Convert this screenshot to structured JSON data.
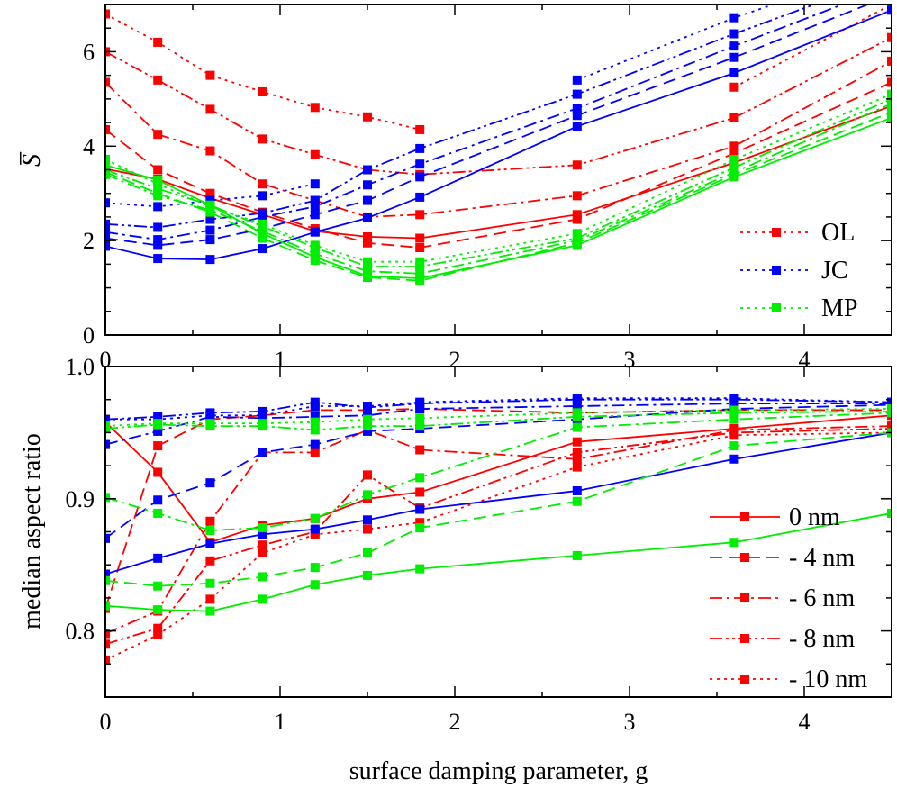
{
  "chart_data": [
    {
      "type": "line",
      "panel": "top",
      "ylabel": "S̅",
      "xlabel": "",
      "xlim": [
        0,
        4.5
      ],
      "ylim": [
        0,
        7
      ],
      "x_ticks": [
        "0",
        "1",
        "2",
        "3",
        "4"
      ],
      "y_ticks": [
        "0",
        "2",
        "4",
        "6"
      ],
      "x": [
        0,
        0.3,
        0.6,
        0.9,
        1.2,
        1.5,
        1.8,
        2.7,
        3.6,
        4.5
      ],
      "legend_position": "right",
      "legend": [
        "OL",
        "JC",
        "MP"
      ],
      "colors": {
        "OL": "#ff0000",
        "JC": "#0000ff",
        "MP": "#00ee00"
      },
      "styles": {
        "solid": "0 nm",
        "dashed": "- 4 nm",
        "dashdot": "- 6 nm",
        "dashdotdot": "- 8 nm",
        "dotted": "- 10 nm"
      },
      "series": [
        {
          "group": "OL",
          "depth": "0 nm",
          "style": "solid",
          "values": [
            3.52,
            3.3,
            2.9,
            2.55,
            2.2,
            2.08,
            2.05,
            2.55,
            3.65,
            4.85
          ]
        },
        {
          "group": "OL",
          "depth": "- 4 nm",
          "style": "dashed",
          "values": [
            4.35,
            3.5,
            3.0,
            2.6,
            2.25,
            1.95,
            1.85,
            2.45,
            3.85,
            5.35
          ]
        },
        {
          "group": "OL",
          "depth": "- 6 nm",
          "style": "dashdot",
          "values": [
            5.35,
            4.25,
            3.9,
            3.2,
            2.85,
            2.5,
            2.55,
            2.95,
            4.0,
            5.8
          ]
        },
        {
          "group": "OL",
          "depth": "- 8 nm",
          "style": "dashdotdot",
          "values": [
            6.0,
            5.4,
            4.78,
            4.15,
            3.82,
            3.5,
            3.4,
            3.6,
            4.6,
            6.3
          ]
        },
        {
          "group": "OL",
          "depth": "- 10 nm",
          "style": "dotted",
          "values": [
            6.8,
            6.2,
            5.5,
            5.15,
            4.82,
            4.62,
            4.35,
            null,
            5.25,
            7.0
          ]
        },
        {
          "group": "JC",
          "depth": "0 nm",
          "style": "solid",
          "values": [
            1.88,
            1.62,
            1.6,
            1.83,
            2.18,
            2.48,
            2.92,
            4.42,
            5.55,
            6.88
          ]
        },
        {
          "group": "JC",
          "depth": "- 4 nm",
          "style": "dashed",
          "values": [
            2.05,
            1.9,
            2.02,
            2.25,
            2.55,
            2.85,
            3.35,
            4.65,
            5.88,
            7.2
          ]
        },
        {
          "group": "JC",
          "depth": "- 6 nm",
          "style": "dashdot",
          "values": [
            2.18,
            2.02,
            2.22,
            2.5,
            2.72,
            3.18,
            3.62,
            4.8,
            6.12,
            7.4
          ]
        },
        {
          "group": "JC",
          "depth": "- 8 nm",
          "style": "dashdotdot",
          "values": [
            2.35,
            2.28,
            2.45,
            2.58,
            2.85,
            3.5,
            3.95,
            5.1,
            6.38,
            7.6
          ]
        },
        {
          "group": "JC",
          "depth": "- 10 nm",
          "style": "dotted",
          "values": [
            2.8,
            2.72,
            2.85,
            2.95,
            3.2,
            null,
            null,
            5.4,
            6.72,
            7.85
          ]
        },
        {
          "group": "MP",
          "depth": "0 nm",
          "style": "solid",
          "values": [
            3.6,
            3.28,
            2.75,
            2.15,
            1.65,
            1.25,
            1.2,
            1.9,
            3.35,
            4.6
          ]
        },
        {
          "group": "MP",
          "depth": "- 4 nm",
          "style": "dashed",
          "values": [
            3.45,
            3.0,
            2.6,
            2.05,
            1.58,
            1.22,
            1.15,
            1.95,
            3.4,
            4.72
          ]
        },
        {
          "group": "MP",
          "depth": "- 6 nm",
          "style": "dashdot",
          "values": [
            3.4,
            2.95,
            2.65,
            2.2,
            1.72,
            1.35,
            1.3,
            2.0,
            3.45,
            4.9
          ]
        },
        {
          "group": "MP",
          "depth": "- 8 nm",
          "style": "dashdotdot",
          "values": [
            3.5,
            3.1,
            2.75,
            2.3,
            1.85,
            1.45,
            1.45,
            2.05,
            3.55,
            5.0
          ]
        },
        {
          "group": "MP",
          "depth": "- 10 nm",
          "style": "dotted",
          "values": [
            3.72,
            3.2,
            2.72,
            2.35,
            1.9,
            1.55,
            1.55,
            2.15,
            3.72,
            5.1
          ]
        }
      ]
    },
    {
      "type": "line",
      "panel": "bottom",
      "ylabel": "median aspect ratio",
      "xlabel": "surface damping parameter, g",
      "xlim": [
        0,
        4.5
      ],
      "ylim": [
        0.75,
        1.0
      ],
      "x_ticks": [
        "0",
        "1",
        "2",
        "3",
        "4"
      ],
      "y_ticks": [
        "0.8",
        "0.9",
        "1.0"
      ],
      "x": [
        0,
        0.3,
        0.6,
        0.9,
        1.2,
        1.5,
        1.8,
        2.7,
        3.6,
        4.5
      ],
      "legend_position": "right",
      "legend": [
        "0 nm",
        "- 4 nm",
        "- 6 nm",
        "- 8 nm",
        "- 10 nm"
      ],
      "series": [
        {
          "group": "OL",
          "depth": "0 nm",
          "style": "solid",
          "values": [
            0.958,
            0.92,
            0.867,
            0.88,
            0.885,
            0.9,
            0.905,
            0.943,
            0.953,
            0.963
          ]
        },
        {
          "group": "OL",
          "depth": "- 4 nm",
          "style": "dashed",
          "values": [
            0.817,
            0.94,
            0.96,
            0.963,
            0.967,
            0.967,
            0.968,
            0.965,
            0.967,
            0.967
          ]
        },
        {
          "group": "OL",
          "depth": "- 6 nm",
          "style": "dashdot",
          "values": [
            0.798,
            0.815,
            0.883,
            0.935,
            0.935,
            0.952,
            0.937,
            0.93,
            0.952,
            0.955
          ]
        },
        {
          "group": "OL",
          "depth": "- 8 nm",
          "style": "dashdotdot",
          "values": [
            0.79,
            0.802,
            0.853,
            0.865,
            0.875,
            0.918,
            0.893,
            0.935,
            0.95,
            0.953
          ]
        },
        {
          "group": "OL",
          "depth": "- 10 nm",
          "style": "dotted",
          "values": [
            0.778,
            0.797,
            0.824,
            0.859,
            0.873,
            0.877,
            0.882,
            0.924,
            0.948,
            0.95
          ]
        },
        {
          "group": "JC",
          "depth": "0 nm",
          "style": "solid",
          "values": [
            0.843,
            0.855,
            0.866,
            0.873,
            0.877,
            0.884,
            0.892,
            0.906,
            0.93,
            0.95
          ]
        },
        {
          "group": "JC",
          "depth": "- 4 nm",
          "style": "dashed",
          "values": [
            0.87,
            0.899,
            0.912,
            0.935,
            0.941,
            0.951,
            0.953,
            0.96,
            0.968,
            0.971
          ]
        },
        {
          "group": "JC",
          "depth": "- 6 nm",
          "style": "dashdot",
          "values": [
            0.941,
            0.951,
            0.962,
            0.961,
            0.962,
            0.963,
            0.968,
            0.97,
            0.972,
            0.972
          ]
        },
        {
          "group": "JC",
          "depth": "- 8 nm",
          "style": "dashdotdot",
          "values": [
            0.96,
            0.962,
            0.965,
            0.966,
            0.973,
            0.969,
            0.972,
            0.975,
            0.975,
            0.973
          ]
        },
        {
          "group": "JC",
          "depth": "- 10 nm",
          "style": "dotted",
          "values": [
            0.96,
            0.96,
            0.963,
            0.963,
            0.97,
            0.97,
            0.973,
            0.976,
            0.976,
            0.973
          ]
        },
        {
          "group": "MP",
          "depth": "0 nm",
          "style": "solid",
          "values": [
            0.819,
            0.816,
            0.815,
            0.824,
            0.835,
            0.842,
            0.847,
            0.857,
            0.867,
            0.889
          ]
        },
        {
          "group": "MP",
          "depth": "- 4 nm",
          "style": "dashed",
          "values": [
            0.838,
            0.834,
            0.836,
            0.841,
            0.848,
            0.859,
            0.878,
            0.898,
            0.94,
            0.95
          ]
        },
        {
          "group": "MP",
          "depth": "- 6 nm",
          "style": "dashdot",
          "values": [
            0.901,
            0.889,
            0.876,
            0.878,
            0.885,
            0.903,
            0.916,
            0.954,
            0.96,
            0.965
          ]
        },
        {
          "group": "MP",
          "depth": "- 8 nm",
          "style": "dashdotdot",
          "values": [
            0.953,
            0.956,
            0.955,
            0.955,
            0.952,
            0.955,
            0.955,
            0.962,
            0.965,
            0.966
          ]
        },
        {
          "group": "MP",
          "depth": "- 10 nm",
          "style": "dotted",
          "values": [
            0.955,
            0.957,
            0.957,
            0.957,
            0.958,
            0.96,
            0.961,
            0.965,
            0.967,
            0.968
          ]
        }
      ]
    }
  ]
}
